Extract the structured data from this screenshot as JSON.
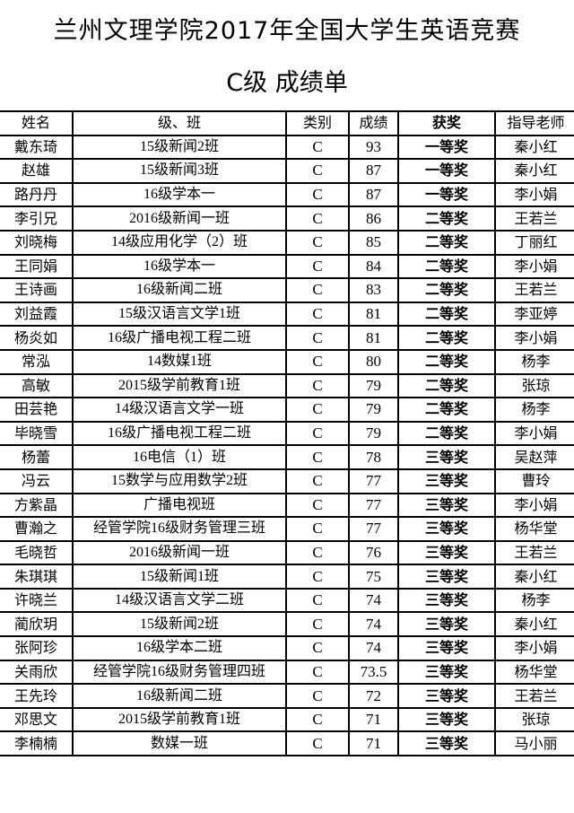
{
  "title": "兰州文理学院2017年全国大学生英语竞赛",
  "subtitle": "C级  成绩单",
  "columns": [
    "姓名",
    "级、班",
    "类别",
    "成绩",
    "获奖",
    "指导老师"
  ],
  "rows": [
    [
      "戴东琦",
      "15级新闻2班",
      "C",
      "93",
      "一等奖",
      "秦小红"
    ],
    [
      "赵雄",
      "15级新闻3班",
      "C",
      "87",
      "一等奖",
      "秦小红"
    ],
    [
      "路丹丹",
      "16级学本一",
      "C",
      "87",
      "一等奖",
      "李小娟"
    ],
    [
      "李引兄",
      "2016级新闻一班",
      "C",
      "86",
      "二等奖",
      "王若兰"
    ],
    [
      "刘晓梅",
      "14级应用化学（2）班",
      "C",
      "85",
      "二等奖",
      "丁丽红"
    ],
    [
      "王同娟",
      "16级学本一",
      "C",
      "84",
      "二等奖",
      "李小娟"
    ],
    [
      "王诗画",
      "16级新闻二班",
      "C",
      "83",
      "二等奖",
      "王若兰"
    ],
    [
      "刘益霞",
      "15级汉语言文学1班",
      "C",
      "81",
      "二等奖",
      "李亚婷"
    ],
    [
      "杨炎如",
      "16级广播电视工程二班",
      "C",
      "81",
      "二等奖",
      "李小娟"
    ],
    [
      "常泓",
      "14数媒1班",
      "C",
      "80",
      "二等奖",
      "杨李"
    ],
    [
      "高敏",
      "2015级学前教育1班",
      "C",
      "79",
      "二等奖",
      "张琼"
    ],
    [
      "田芸艳",
      "14级汉语言文学一班",
      "C",
      "79",
      "二等奖",
      "杨李"
    ],
    [
      "毕晓雪",
      "16级广播电视工程二班",
      "C",
      "79",
      "二等奖",
      "李小娟"
    ],
    [
      "杨蕾",
      "16电信（1）班",
      "C",
      "78",
      "三等奖",
      "吴赵萍"
    ],
    [
      "冯云",
      "15数学与应用数学2班",
      "C",
      "77",
      "三等奖",
      "曹玲"
    ],
    [
      "方紫晶",
      "广播电视班",
      "C",
      "77",
      "三等奖",
      "李小娟"
    ],
    [
      "曹瀚之",
      "经管学院16级财务管理三班",
      "C",
      "77",
      "三等奖",
      "杨华堂"
    ],
    [
      "毛晓哲",
      "2016级新闻一班",
      "C",
      "76",
      "三等奖",
      "王若兰"
    ],
    [
      "朱琪琪",
      "15级新闻1班",
      "C",
      "75",
      "三等奖",
      "秦小红"
    ],
    [
      "许晓兰",
      "14级汉语言文学二班",
      "C",
      "74",
      "三等奖",
      "杨李"
    ],
    [
      "蔺欣玥",
      "15级新闻2班",
      "C",
      "74",
      "三等奖",
      "秦小红"
    ],
    [
      "张阿珍",
      "16级学本二班",
      "C",
      "74",
      "三等奖",
      "李小娟"
    ],
    [
      "关雨欣",
      "经管学院16级财务管理四班",
      "C",
      "73.5",
      "三等奖",
      "杨华堂"
    ],
    [
      "王先玲",
      "16级新闻二班",
      "C",
      "72",
      "三等奖",
      "王若兰"
    ],
    [
      "邓思文",
      "2015级学前教育1班",
      "C",
      "71",
      "三等奖",
      "张琼"
    ],
    [
      "李楠楠",
      "数媒一班",
      "C",
      "71",
      "三等奖",
      "马小丽"
    ]
  ]
}
